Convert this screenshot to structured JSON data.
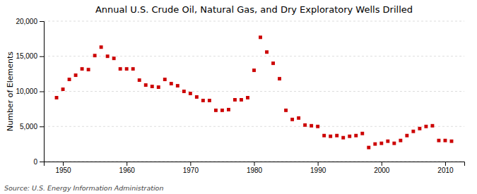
{
  "chart_data": {
    "type": "scatter",
    "title": "Annual U.S. Crude Oil, Natural Gas, and Dry Exploratory Wells Drilled",
    "y_label": "Number of Elements",
    "annotations": [
      "Source: U.S. Energy Information Administration"
    ],
    "x": [
      1949,
      1950,
      1951,
      1952,
      1953,
      1954,
      1955,
      1956,
      1957,
      1958,
      1959,
      1960,
      1961,
      1962,
      1963,
      1964,
      1965,
      1966,
      1967,
      1968,
      1969,
      1970,
      1971,
      1972,
      1973,
      1974,
      1975,
      1976,
      1977,
      1978,
      1979,
      1980,
      1981,
      1982,
      1983,
      1984,
      1985,
      1986,
      1987,
      1988,
      1989,
      1990,
      1991,
      1992,
      1993,
      1994,
      1995,
      1996,
      1997,
      1998,
      1999,
      2000,
      2001,
      2002,
      2003,
      2004,
      2005,
      2006,
      2007,
      2008,
      2009,
      2010,
      2011
    ],
    "values": [
      9100,
      10300,
      11700,
      12300,
      13200,
      13100,
      15100,
      16300,
      15000,
      14700,
      13200,
      13200,
      13200,
      11600,
      10900,
      10700,
      10600,
      11700,
      11100,
      10800,
      10000,
      9700,
      9200,
      8700,
      8700,
      7300,
      7300,
      7400,
      8800,
      8800,
      9100,
      13000,
      17700,
      15600,
      14000,
      11800,
      7300,
      6000,
      6200,
      5200,
      5100,
      5000,
      3700,
      3600,
      3700,
      3400,
      3600,
      3700,
      4000,
      2000,
      2500,
      2600,
      2900,
      2600,
      3000,
      3700,
      4300,
      4700,
      5000,
      5100,
      3000,
      3000,
      2900
    ],
    "color": "#cc0000",
    "marker": "square",
    "xlim": [
      1947,
      2013
    ],
    "xticks": [
      1950,
      1960,
      1970,
      1980,
      1990,
      2000,
      2010
    ],
    "ylim": [
      0,
      20000
    ],
    "yticks": [
      0,
      {
        "value": 5000,
        "label": "5,000"
      },
      {
        "value": 10000,
        "label": "10,000"
      },
      {
        "value": 15000,
        "label": "15,000"
      },
      {
        "value": 20000,
        "label": "20,000"
      }
    ],
    "grid": true
  }
}
